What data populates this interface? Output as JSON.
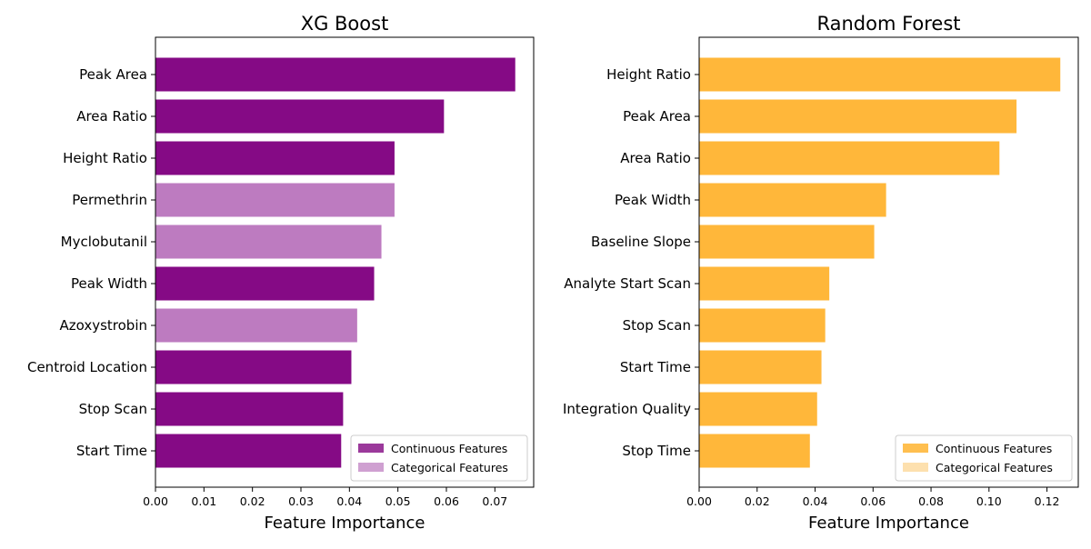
{
  "chart_data": [
    {
      "type": "bar",
      "orientation": "horizontal",
      "title": "XG Boost",
      "xlabel": "Feature Importance",
      "ylabel": "",
      "xlim": [
        0,
        0.078
      ],
      "xticks": [
        0.0,
        0.01,
        0.02,
        0.03,
        0.04,
        0.05,
        0.06,
        0.07
      ],
      "xtick_labels": [
        "0.00",
        "0.01",
        "0.02",
        "0.03",
        "0.04",
        "0.05",
        "0.06",
        "0.07"
      ],
      "categories": [
        "Peak Area",
        "Area Ratio",
        "Height Ratio",
        "Permethrin",
        "Myclobutanil",
        "Peak Width",
        "Azoxystrobin",
        "Centroid Location",
        "Stop Scan",
        "Start Time"
      ],
      "values": [
        0.0742,
        0.0595,
        0.0493,
        0.0493,
        0.0466,
        0.0451,
        0.0416,
        0.0404,
        0.0387,
        0.0383
      ],
      "feature_types": [
        "continuous",
        "continuous",
        "continuous",
        "categorical",
        "categorical",
        "continuous",
        "categorical",
        "continuous",
        "continuous",
        "continuous"
      ],
      "colors": {
        "continuous": "#850a85",
        "categorical": "#bd7bc0"
      },
      "legend": {
        "position": "lower-right",
        "entries": [
          {
            "label": "Continuous Features",
            "color": "#9b399b"
          },
          {
            "label": "Categorical Features",
            "color": "#cfa0d1"
          }
        ]
      }
    },
    {
      "type": "bar",
      "orientation": "horizontal",
      "title": "Random Forest",
      "xlabel": "Feature Importance",
      "ylabel": "",
      "xlim": [
        0,
        0.1308
      ],
      "xticks": [
        0.0,
        0.02,
        0.04,
        0.06,
        0.08,
        0.1,
        0.12
      ],
      "xtick_labels": [
        "0.00",
        "0.02",
        "0.04",
        "0.06",
        "0.08",
        "0.10",
        "0.12"
      ],
      "categories": [
        "Height Ratio",
        "Peak Area",
        "Area Ratio",
        "Peak Width",
        "Baseline Slope",
        "Analyte Start Scan",
        "Stop Scan",
        "Start Time",
        "Integration Quality",
        "Stop Time"
      ],
      "values": [
        0.1246,
        0.1095,
        0.1036,
        0.0645,
        0.0604,
        0.0449,
        0.0435,
        0.0422,
        0.0407,
        0.0382
      ],
      "feature_types": [
        "continuous",
        "continuous",
        "continuous",
        "continuous",
        "continuous",
        "continuous",
        "continuous",
        "continuous",
        "continuous",
        "continuous"
      ],
      "colors": {
        "continuous": "#ffb73a",
        "categorical": "#fddeab"
      },
      "legend": {
        "position": "lower-right",
        "entries": [
          {
            "label": "Continuous Features",
            "color": "#ffbf4f"
          },
          {
            "label": "Categorical Features",
            "color": "#fde0ae"
          }
        ]
      }
    }
  ]
}
